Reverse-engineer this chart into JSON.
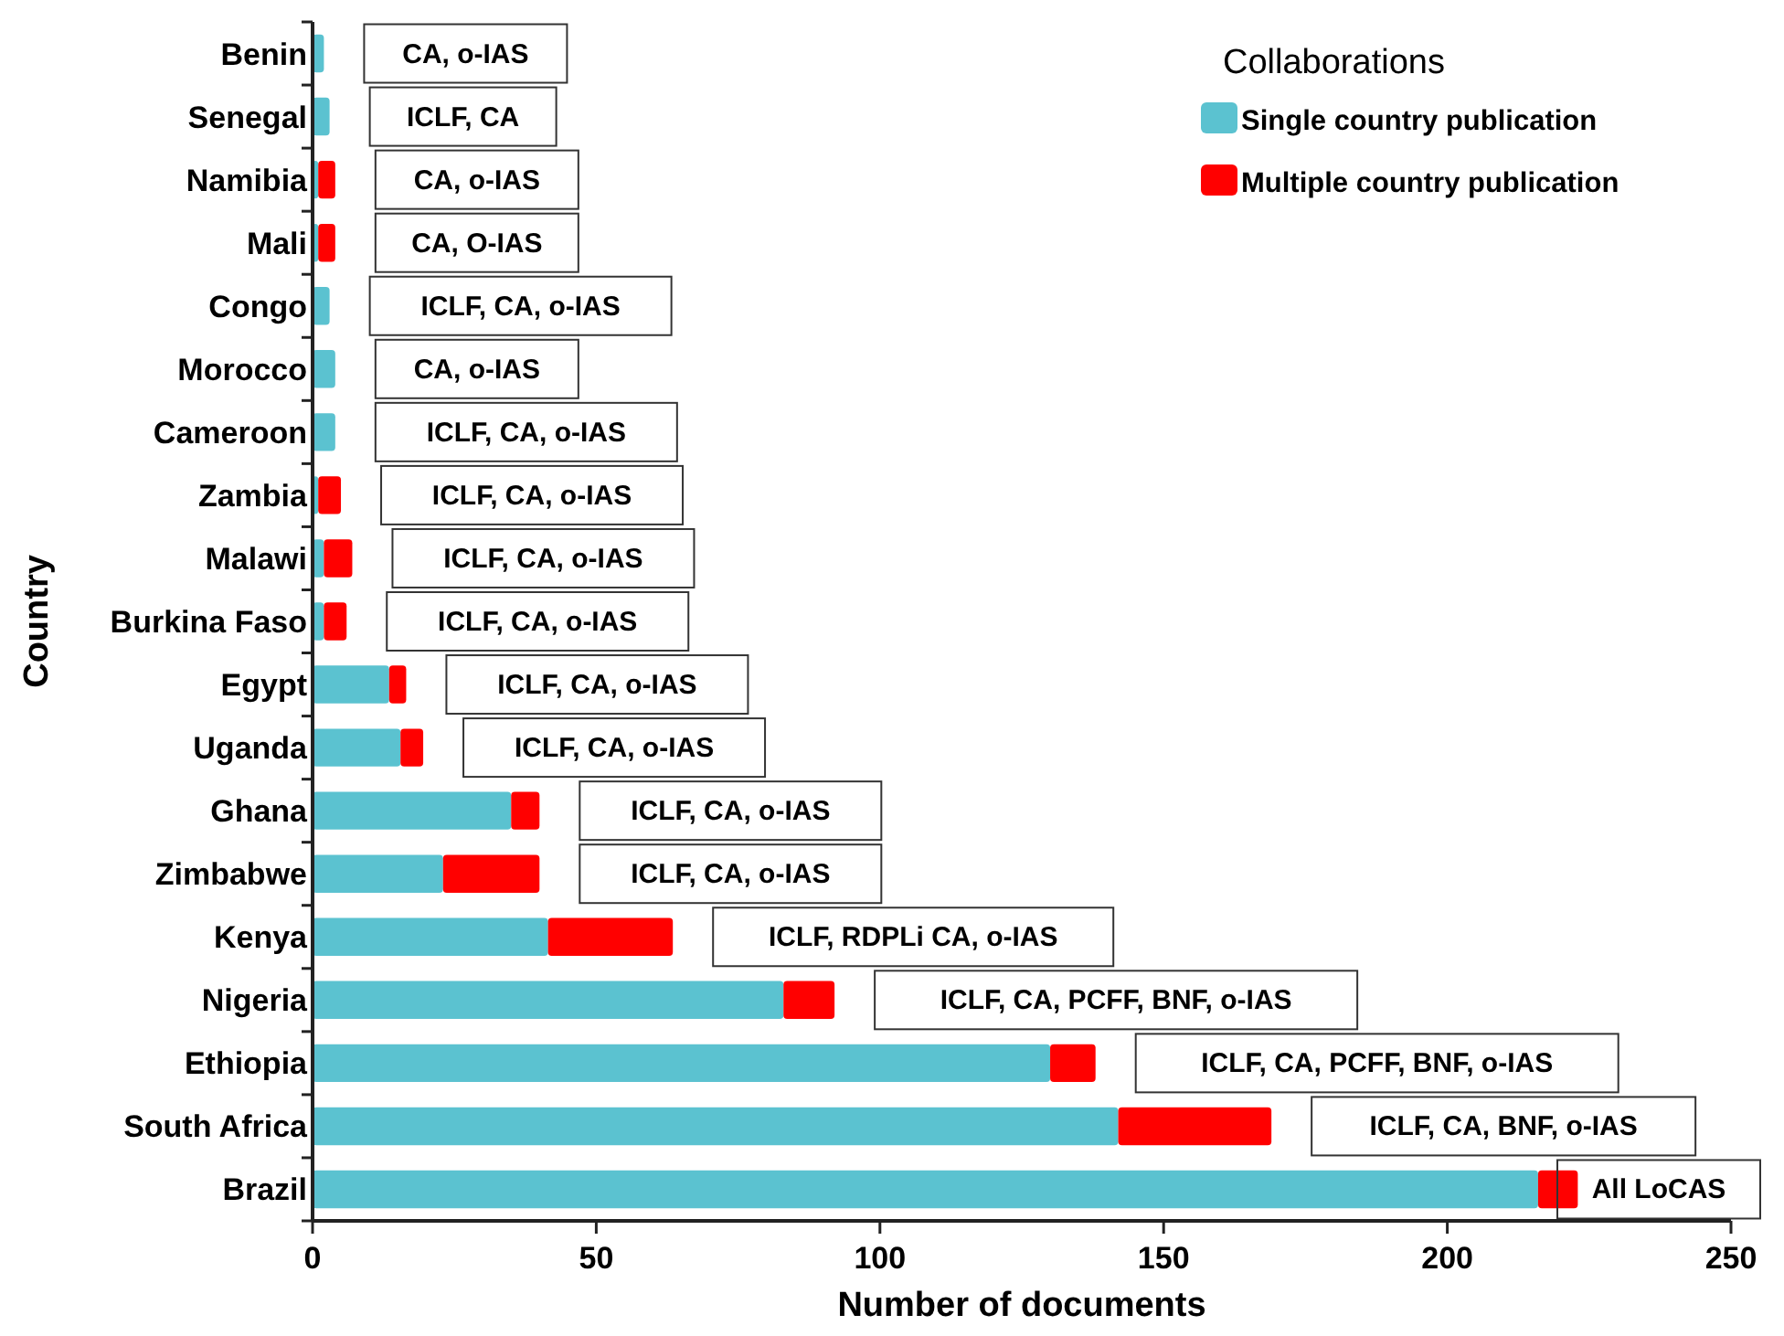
{
  "chart_data": {
    "type": "bar",
    "orientation": "horizontal",
    "stacked": true,
    "xlabel": "Number of documents",
    "ylabel": "Country",
    "legend_title": "Collaborations",
    "legend": "top right",
    "categories": [
      "Benin",
      "Senegal",
      "Namibia",
      "Mali",
      "Congo",
      "Morocco",
      "Cameroon",
      "Zambia",
      "Malawi",
      "Burkina Faso",
      "Egypt",
      "Uganda",
      "Ghana",
      "Zimbabwe",
      "Kenya",
      "Nigeria",
      "Ethiopia",
      "South Africa",
      "Brazil"
    ],
    "series": [
      {
        "name": "Single country publication",
        "color": "#5bc2d0",
        "values": [
          2,
          3,
          1,
          1,
          3,
          4,
          4,
          1,
          2,
          2,
          13.5,
          15.5,
          35,
          23,
          41.5,
          83,
          130,
          142,
          216
        ]
      },
      {
        "name": "Multiple country publication",
        "color": "#ff0000",
        "values": [
          0,
          0,
          3,
          3,
          0,
          0,
          0,
          4,
          5,
          4,
          3,
          4,
          5,
          17,
          22,
          9,
          8,
          27,
          7
        ]
      }
    ],
    "xlim": [
      0,
      250
    ],
    "xticks": [
      0,
      50,
      100,
      150,
      200,
      250
    ],
    "grid": false,
    "annotations": [
      "CA, o-IAS",
      "ICLF, CA",
      "CA, o-IAS",
      "CA, O-IAS",
      "ICLF, CA, o-IAS",
      "CA, o-IAS",
      "ICLF, CA, o-IAS",
      "ICLF, CA, o-IAS",
      "ICLF, CA, o-IAS",
      "ICLF, CA, o-IAS",
      "ICLF, CA, o-IAS",
      "ICLF, CA, o-IAS",
      "ICLF, CA, o-IAS",
      "ICLF, CA, o-IAS",
      "ICLF, RDPLi CA, o-IAS",
      "ICLF, CA, PCFF, BNF, o-IAS",
      "ICLF, CA, PCFF, BNF, o-IAS",
      "ICLF, CA, BNF, o-IAS",
      "All LoCAS"
    ]
  }
}
